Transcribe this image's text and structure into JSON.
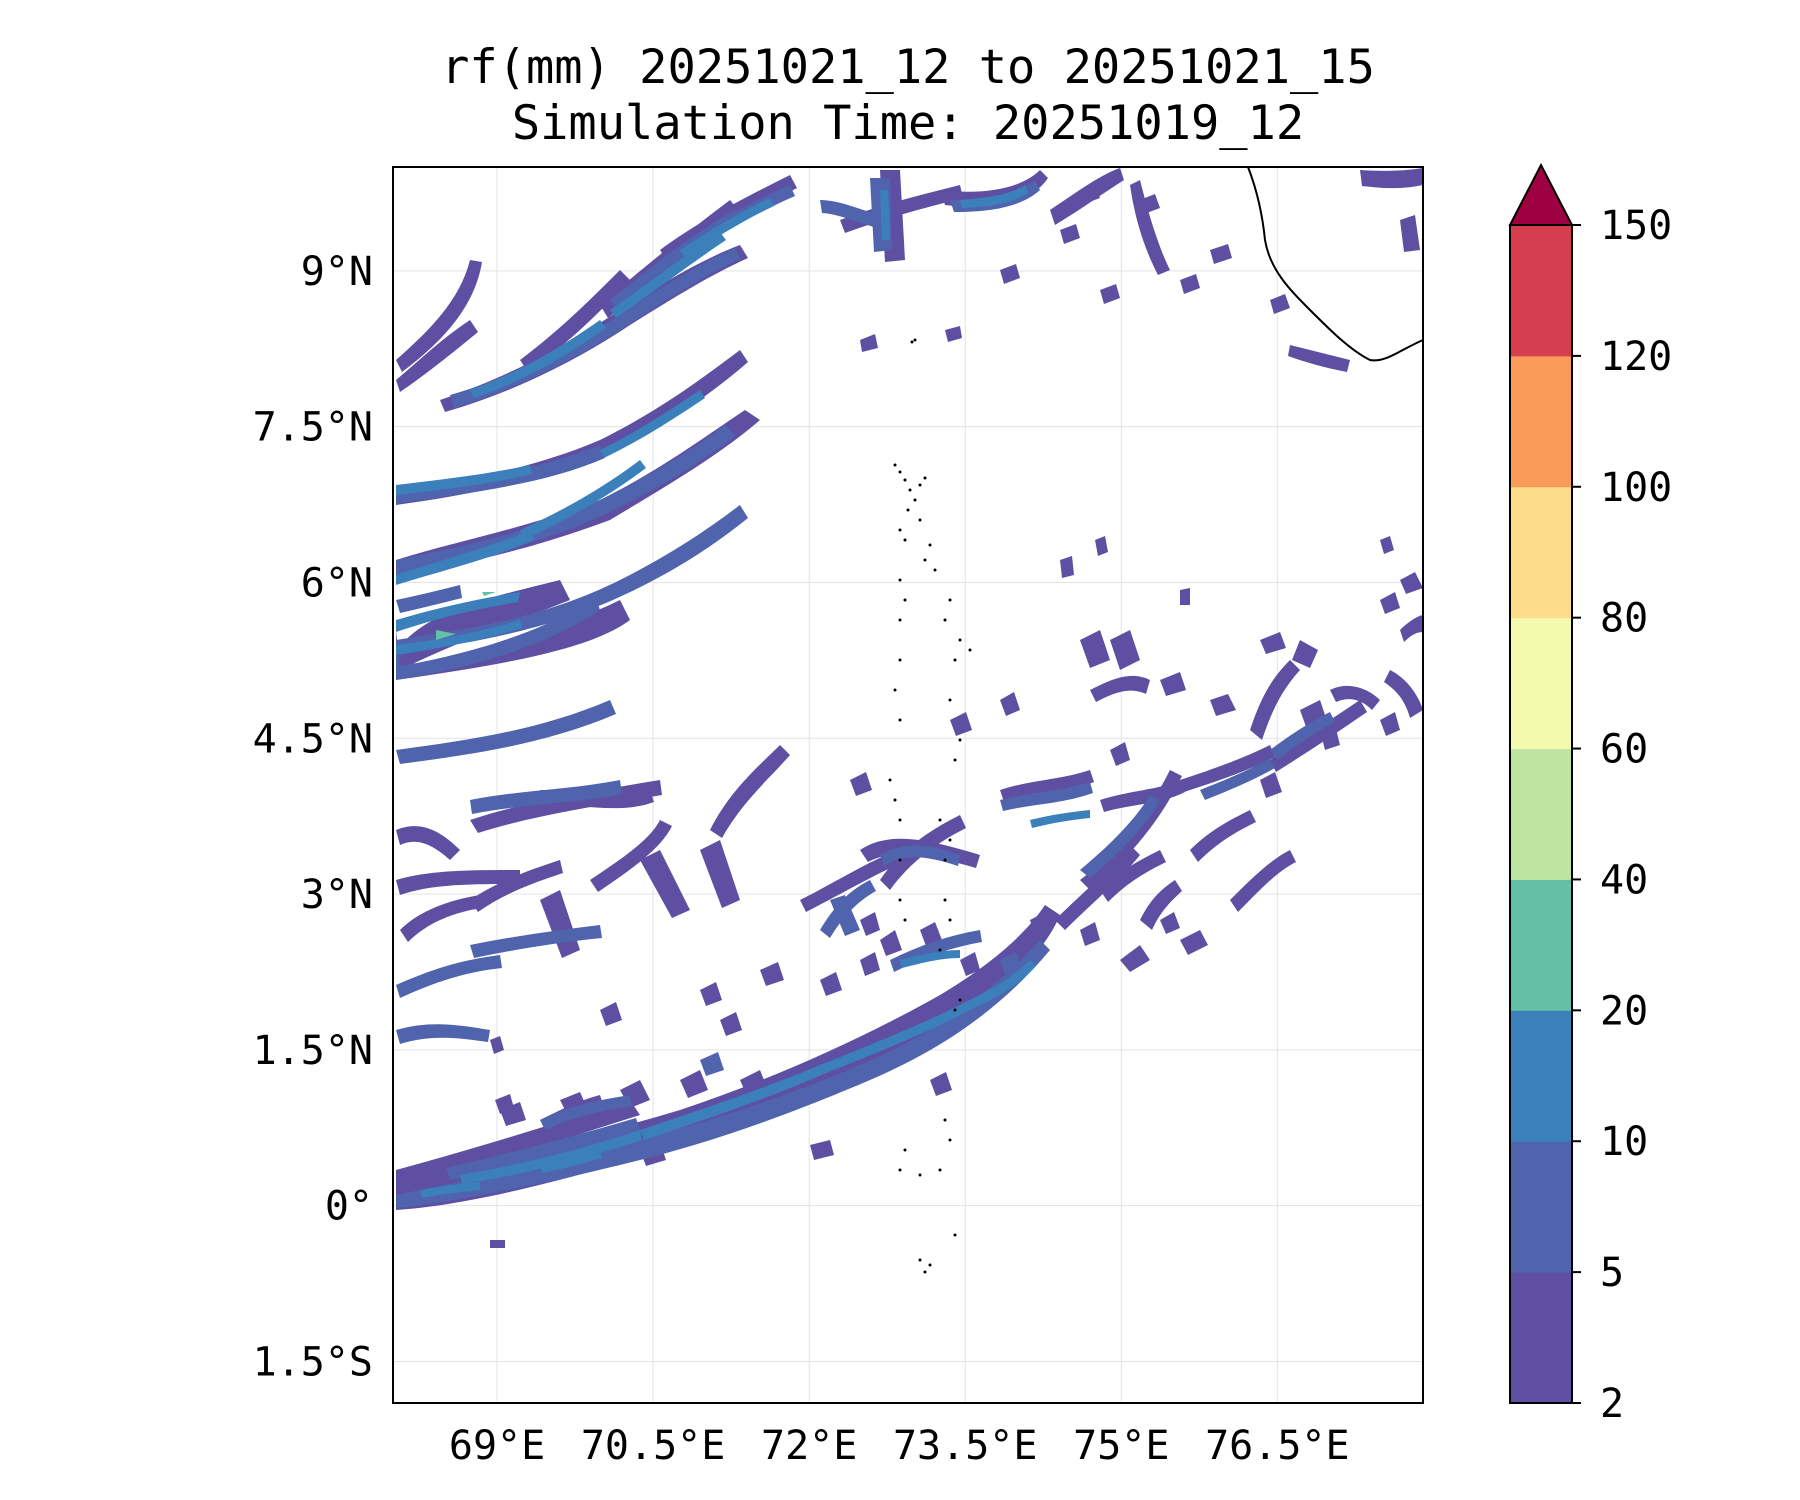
{
  "title": {
    "line1": "rf(mm) 20251021_12 to 20251021_15",
    "line2": "Simulation Time: 20251019_12"
  },
  "map": {
    "extent": {
      "lon_min": 68.0,
      "lon_max": 77.9,
      "lat_min": -1.9,
      "lat_max": 10.0
    },
    "lat_ticks": [
      {
        "value": 9.0,
        "label": "9°N"
      },
      {
        "value": 7.5,
        "label": "7.5°N"
      },
      {
        "value": 6.0,
        "label": "6°N"
      },
      {
        "value": 4.5,
        "label": "4.5°N"
      },
      {
        "value": 3.0,
        "label": "3°N"
      },
      {
        "value": 1.5,
        "label": "1.5°N"
      },
      {
        "value": 0.0,
        "label": "0°"
      },
      {
        "value": -1.5,
        "label": "1.5°S"
      }
    ],
    "lon_ticks": [
      {
        "value": 69.0,
        "label": "69°E"
      },
      {
        "value": 70.5,
        "label": "70.5°E"
      },
      {
        "value": 72.0,
        "label": "72°E"
      },
      {
        "value": 73.5,
        "label": "73.5°E"
      },
      {
        "value": 75.0,
        "label": "75°E"
      },
      {
        "value": 76.5,
        "label": "76.5°E"
      }
    ]
  },
  "colorbar": {
    "levels": [
      2,
      5,
      10,
      20,
      40,
      60,
      80,
      100,
      120,
      150
    ],
    "labels": [
      "2",
      "5",
      "10",
      "20",
      "40",
      "60",
      "80",
      "100",
      "120",
      "150"
    ],
    "colors": [
      "#5e4fa2",
      "#4f64ad",
      "#3b80bb",
      "#63c0a6",
      "#bde4a1",
      "#f3faad",
      "#fddd8a",
      "#f99c59",
      "#d53e4f"
    ],
    "over_color": "#9e0142",
    "extend": "max"
  },
  "colors": {
    "band_5_10": "#4f64ad",
    "band_10_20": "#3b80bb",
    "band_20_40": "#63c0a6",
    "grid": "#e3e3e3",
    "coast": "#000000"
  }
}
